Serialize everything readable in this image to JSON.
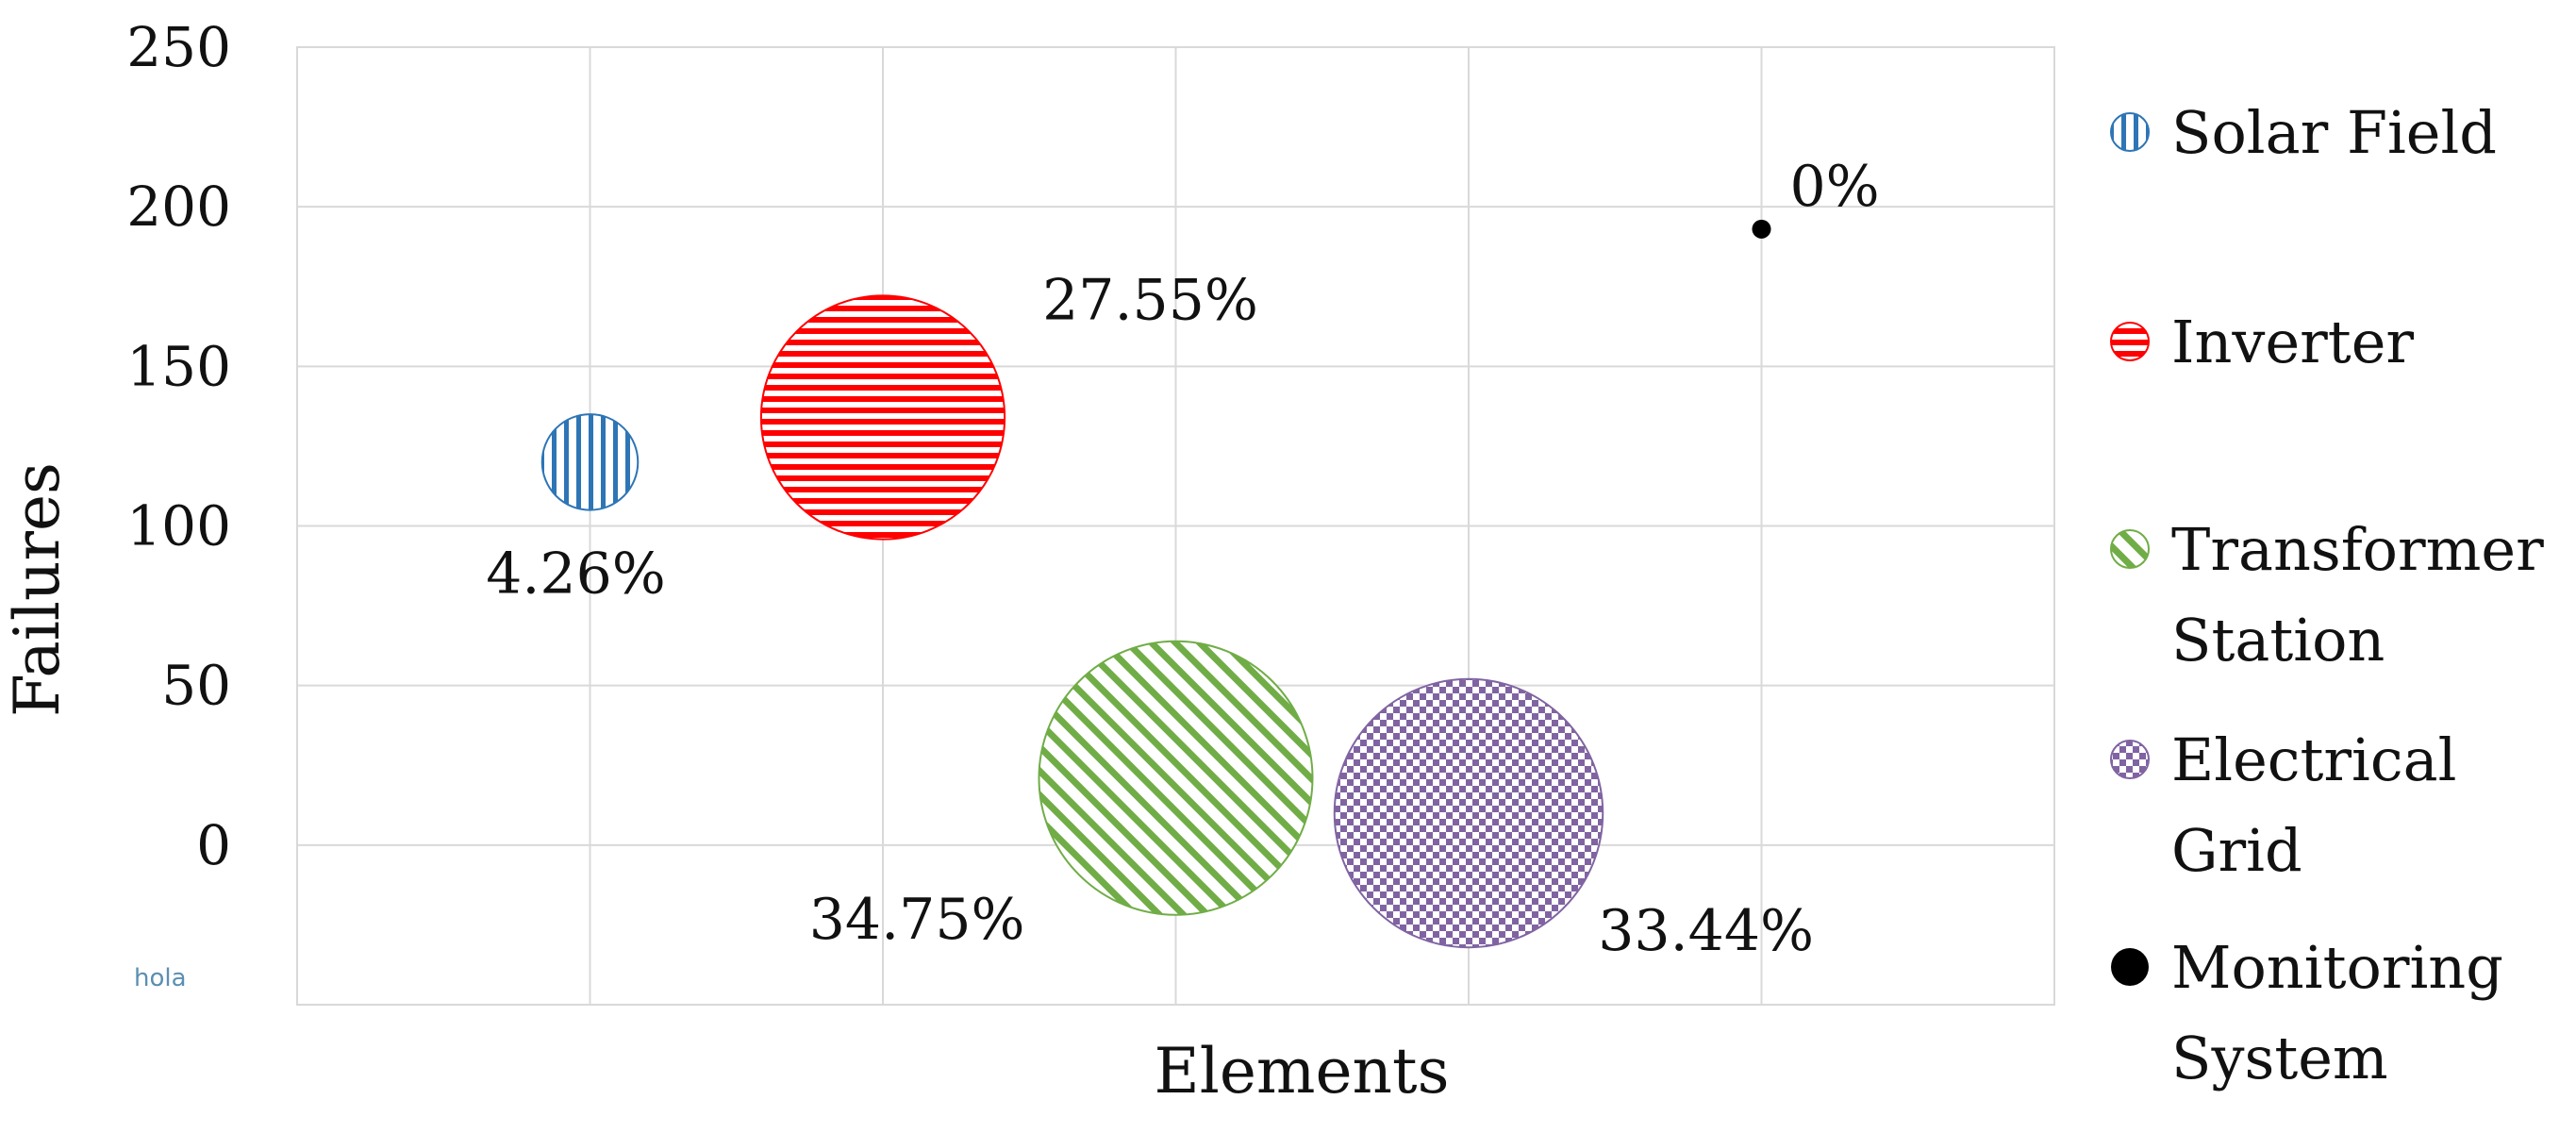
{
  "watermark_text": "hola",
  "chart_data": {
    "type": "scatter",
    "subtype": "bubble",
    "title": "",
    "xlabel": "Elements",
    "ylabel": "Failures",
    "xlim": [
      0,
      6
    ],
    "ylim": [
      -50,
      250
    ],
    "y_ticks": [
      0,
      50,
      100,
      150,
      200,
      250
    ],
    "x_tick_labels_shown": false,
    "grid": true,
    "legend_position": "right",
    "series": [
      {
        "name": "Solar Field",
        "legend_lines": [
          "Solar Field"
        ],
        "x": 1,
        "y": 120,
        "size": 4.26,
        "label": "4.26%",
        "color": "#2E75B6",
        "pattern": "vertical-stripes"
      },
      {
        "name": "Inverter",
        "legend_lines": [
          "Inverter"
        ],
        "x": 2,
        "y": 134,
        "size": 27.55,
        "label": "27.55%",
        "color": "#FF0000",
        "pattern": "horizontal-stripes"
      },
      {
        "name": "Transformer Station",
        "legend_lines": [
          "Transformer",
          "Station"
        ],
        "x": 3,
        "y": 21,
        "size": 34.75,
        "label": "34.75%",
        "color": "#70AD47",
        "pattern": "diagonal-stripes"
      },
      {
        "name": "Electrical Grid",
        "legend_lines": [
          "Electrical",
          "Grid"
        ],
        "x": 4,
        "y": 10,
        "size": 33.44,
        "label": "33.44%",
        "color": "#8064A2",
        "pattern": "checker"
      },
      {
        "name": "Monitoring System",
        "legend_lines": [
          "Monitoring",
          "System"
        ],
        "x": 5,
        "y": 193,
        "size": 0,
        "label": "0%",
        "color": "#000000",
        "pattern": "solid"
      }
    ]
  }
}
